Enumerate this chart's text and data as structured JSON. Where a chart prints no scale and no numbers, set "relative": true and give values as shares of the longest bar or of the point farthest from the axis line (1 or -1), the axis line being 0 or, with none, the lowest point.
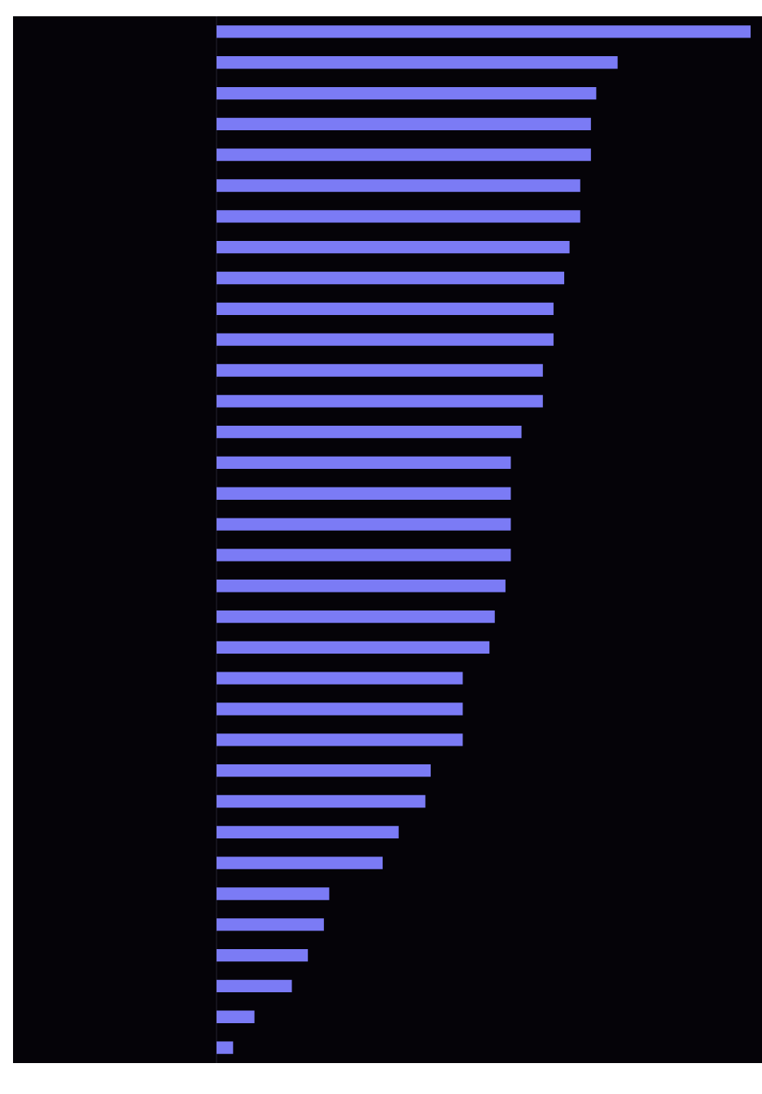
{
  "chart_data": {
    "type": "bar",
    "orientation": "horizontal",
    "relative": true,
    "color": "#7b7bf5",
    "legend": false,
    "categories": [
      null,
      null,
      null,
      null,
      null,
      null,
      null,
      null,
      null,
      null,
      null,
      null,
      null,
      null,
      null,
      null,
      null,
      null,
      null,
      null,
      null,
      null,
      null,
      null,
      null,
      null,
      null,
      null,
      null,
      null,
      null,
      null,
      null,
      null
    ],
    "values": [
      1,
      0.75,
      0.71,
      0.7,
      0.7,
      0.68,
      0.68,
      0.66,
      0.65,
      0.63,
      0.63,
      0.61,
      0.61,
      0.57,
      0.55,
      0.55,
      0.55,
      0.55,
      0.54,
      0.52,
      0.51,
      0.46,
      0.46,
      0.46,
      0.4,
      0.39,
      0.34,
      0.31,
      0.21,
      0.2,
      0.17,
      0.14,
      0.07,
      0.03
    ]
  }
}
